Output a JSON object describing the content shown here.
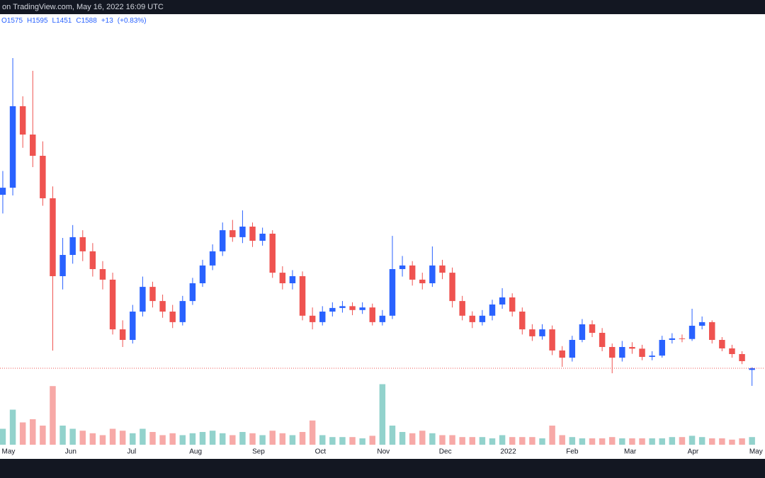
{
  "chart_data": {
    "type": "candlestick",
    "title": "on TradingView.com, May 16, 2022 16:09 UTC",
    "legend": [
      {
        "label": "O",
        "value": 1575
      },
      {
        "label": "H",
        "value": 1595
      },
      {
        "label": "L",
        "value": 1451
      },
      {
        "label": "C",
        "value": 1588
      }
    ],
    "change": "+13",
    "change_pct": "(+0.83%)",
    "up_color": "#2962ff",
    "down_color": "#ef5350",
    "vol_up_color": "rgba(38,166,154,0.5)",
    "vol_down_color": "rgba(239,83,80,0.5)",
    "last_line_color": "#ef5350",
    "open": [
      2935,
      2990,
      3623,
      3403,
      3238,
      2908,
      2303,
      2468,
      2606,
      2496,
      2358,
      2276,
      1890,
      1808,
      2028,
      2220,
      2110,
      2028,
      1946,
      2110,
      2248,
      2386,
      2496,
      2660,
      2606,
      2688,
      2578,
      2633,
      2330,
      2248,
      2303,
      1996,
      1946,
      2028,
      2056,
      2070,
      2040,
      2060,
      1946,
      1996,
      2358,
      2386,
      2276,
      2248,
      2386,
      2330,
      2110,
      1996,
      1946,
      1996,
      2083,
      2138,
      2028,
      1890,
      1836,
      1890,
      1726,
      1670,
      1808,
      1929,
      1863,
      1753,
      1670,
      1753,
      1740,
      1676,
      1686,
      1808,
      1820,
      1815,
      1918,
      1946,
      1808,
      1742,
      1698,
      1575
    ],
    "high": [
      3120,
      3997,
      3700,
      3898,
      3350,
      3000,
      2600,
      2700,
      2660,
      2560,
      2420,
      2330,
      1960,
      2080,
      2300,
      2260,
      2160,
      2080,
      2150,
      2290,
      2430,
      2550,
      2720,
      2740,
      2814,
      2720,
      2680,
      2660,
      2380,
      2350,
      2340,
      2060,
      2070,
      2100,
      2110,
      2100,
      2100,
      2090,
      2040,
      2616,
      2460,
      2420,
      2330,
      2534,
      2430,
      2370,
      2150,
      2030,
      2040,
      2120,
      2210,
      2170,
      2060,
      1930,
      1930,
      1920,
      1760,
      1840,
      1970,
      1960,
      1900,
      1780,
      1800,
      1790,
      1770,
      1720,
      1840,
      1860,
      1850,
      2050,
      1990,
      1960,
      1830,
      1770,
      1720,
      1595
    ],
    "low": [
      2790,
      2930,
      3300,
      3150,
      2850,
      1725,
      2200,
      2400,
      2420,
      2300,
      2200,
      1850,
      1753,
      1780,
      1990,
      2060,
      1980,
      1900,
      1920,
      2080,
      2220,
      2350,
      2460,
      2570,
      2560,
      2530,
      2540,
      2290,
      2200,
      2200,
      1960,
      1890,
      1920,
      1990,
      2020,
      2000,
      2010,
      1920,
      1920,
      1970,
      2300,
      2230,
      2200,
      2220,
      2280,
      2060,
      1960,
      1900,
      1920,
      1960,
      2050,
      1990,
      1850,
      1800,
      1810,
      1690,
      1599,
      1640,
      1790,
      1830,
      1720,
      1549,
      1640,
      1700,
      1650,
      1650,
      1670,
      1780,
      1790,
      1800,
      1890,
      1780,
      1720,
      1670,
      1620,
      1451
    ],
    "close": [
      2990,
      3623,
      3403,
      3238,
      2908,
      2303,
      2468,
      2606,
      2496,
      2358,
      2276,
      1890,
      1808,
      2028,
      2220,
      2110,
      2028,
      1946,
      2110,
      2248,
      2386,
      2496,
      2660,
      2606,
      2688,
      2578,
      2633,
      2330,
      2248,
      2303,
      1996,
      1946,
      2028,
      2056,
      2070,
      2040,
      2060,
      1946,
      1996,
      2358,
      2386,
      2276,
      2248,
      2386,
      2330,
      2110,
      1996,
      1946,
      1996,
      2083,
      2138,
      2028,
      1890,
      1836,
      1890,
      1726,
      1670,
      1808,
      1929,
      1863,
      1753,
      1670,
      1753,
      1740,
      1676,
      1686,
      1808,
      1820,
      1815,
      1918,
      1946,
      1808,
      1742,
      1698,
      1643,
      1588
    ],
    "volume": [
      25,
      55,
      35,
      40,
      30,
      92,
      30,
      25,
      22,
      18,
      15,
      25,
      22,
      18,
      25,
      20,
      15,
      18,
      15,
      18,
      20,
      22,
      18,
      15,
      20,
      18,
      15,
      22,
      18,
      15,
      20,
      38,
      15,
      12,
      12,
      12,
      10,
      14,
      95,
      30,
      20,
      18,
      22,
      18,
      15,
      15,
      12,
      12,
      12,
      10,
      15,
      12,
      12,
      12,
      10,
      30,
      15,
      12,
      10,
      10,
      10,
      12,
      10,
      10,
      10,
      10,
      10,
      12,
      12,
      14,
      12,
      10,
      10,
      8,
      10,
      12
    ],
    "xlim": [
      -0.28,
      76.3
    ],
    "ylim": [
      1368,
      4338
    ],
    "vlim": [
      0,
      100
    ],
    "xticks": [
      {
        "value": 0.57,
        "label": "May"
      },
      {
        "value": 6.8,
        "label": "Jun"
      },
      {
        "value": 12.9,
        "label": "Jul"
      },
      {
        "value": 19.3,
        "label": "Aug"
      },
      {
        "value": 25.6,
        "label": "Sep"
      },
      {
        "value": 31.8,
        "label": "Oct"
      },
      {
        "value": 38.1,
        "label": "Nov"
      },
      {
        "value": 44.3,
        "label": "Dec"
      },
      {
        "value": 50.6,
        "label": "2022"
      },
      {
        "value": 57.0,
        "label": "Feb"
      },
      {
        "value": 62.8,
        "label": "Mar"
      },
      {
        "value": 69.1,
        "label": "Apr"
      },
      {
        "value": 75.4,
        "label": "May"
      }
    ],
    "grid": false
  }
}
